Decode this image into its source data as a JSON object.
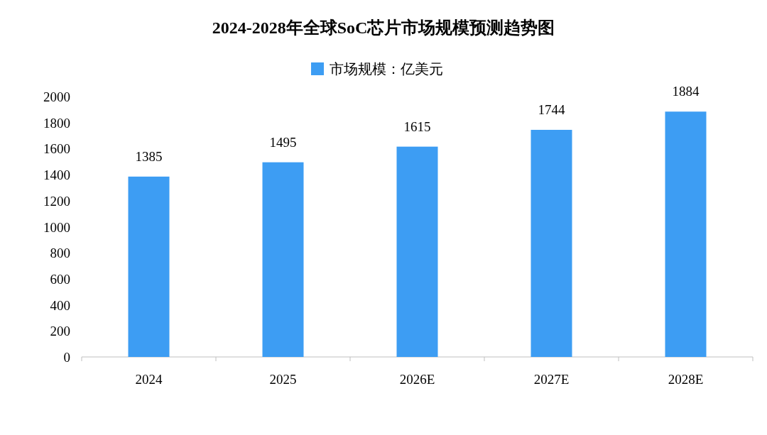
{
  "chart_data": {
    "type": "bar",
    "title": "2024-2028年全球SoC芯片市场规模预测趋势图",
    "categories": [
      "2024",
      "2025",
      "2026E",
      "2027E",
      "2028E"
    ],
    "series": [
      {
        "name": "市场规模：亿美元",
        "color": "#3d9df3",
        "values": [
          1385,
          1495,
          1615,
          1744,
          1884
        ]
      }
    ],
    "ylim": [
      0,
      2000
    ],
    "yticks": [
      0,
      200,
      400,
      600,
      800,
      1000,
      1200,
      1400,
      1600,
      1800,
      2000
    ],
    "data_labels": true,
    "legend": "top",
    "grid": false
  }
}
